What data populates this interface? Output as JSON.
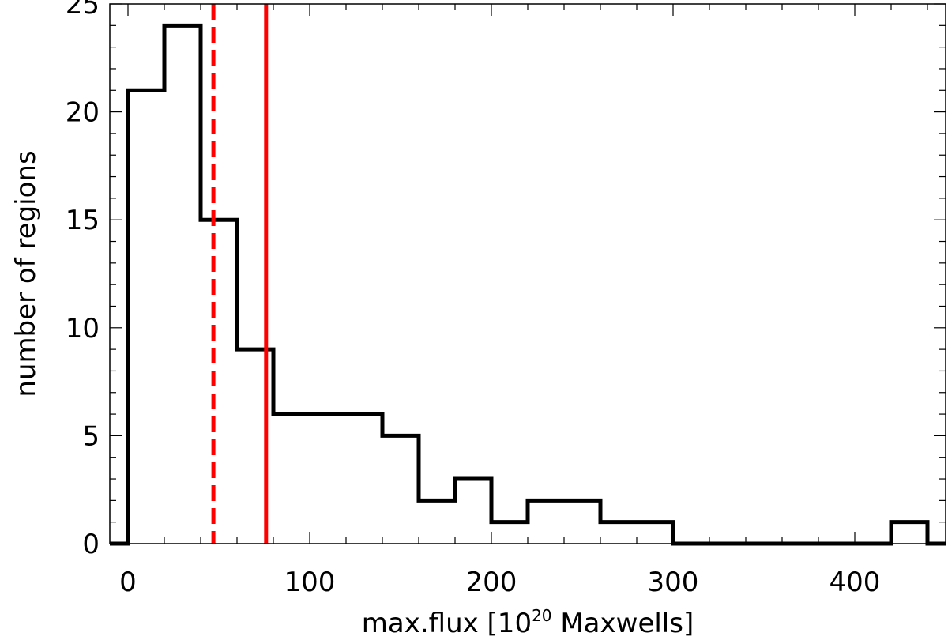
{
  "chart_data": {
    "type": "histogram",
    "xlabel": {
      "prefix": "max.flux [10",
      "superscript": "20",
      "suffix": " Maxwells]"
    },
    "ylabel": "number of regions",
    "xlim": [
      -10,
      450
    ],
    "ylim": [
      0,
      25
    ],
    "x_ticks": [
      0,
      100,
      200,
      300,
      400
    ],
    "x_tick_labels": [
      "0",
      "100",
      "200",
      "300",
      "400"
    ],
    "y_ticks": [
      0,
      5,
      10,
      15,
      20,
      25
    ],
    "y_tick_labels": [
      "0",
      "5",
      "10",
      "15",
      "20",
      "25"
    ],
    "bin_edges": [
      0,
      20,
      40,
      60,
      80,
      100,
      120,
      140,
      160,
      180,
      200,
      220,
      240,
      260,
      280,
      300,
      320,
      340,
      360,
      380,
      400,
      420,
      440
    ],
    "counts": [
      21,
      24,
      15,
      9,
      6,
      6,
      6,
      5,
      2,
      3,
      1,
      2,
      2,
      1,
      1,
      0,
      0,
      0,
      0,
      0,
      0,
      1
    ],
    "vertical_lines": [
      {
        "x": 47,
        "style": "dashed",
        "color": "#ff0000"
      },
      {
        "x": 76,
        "style": "solid",
        "color": "#ff0000"
      }
    ],
    "histogram_color": "#000000",
    "grid": false
  }
}
